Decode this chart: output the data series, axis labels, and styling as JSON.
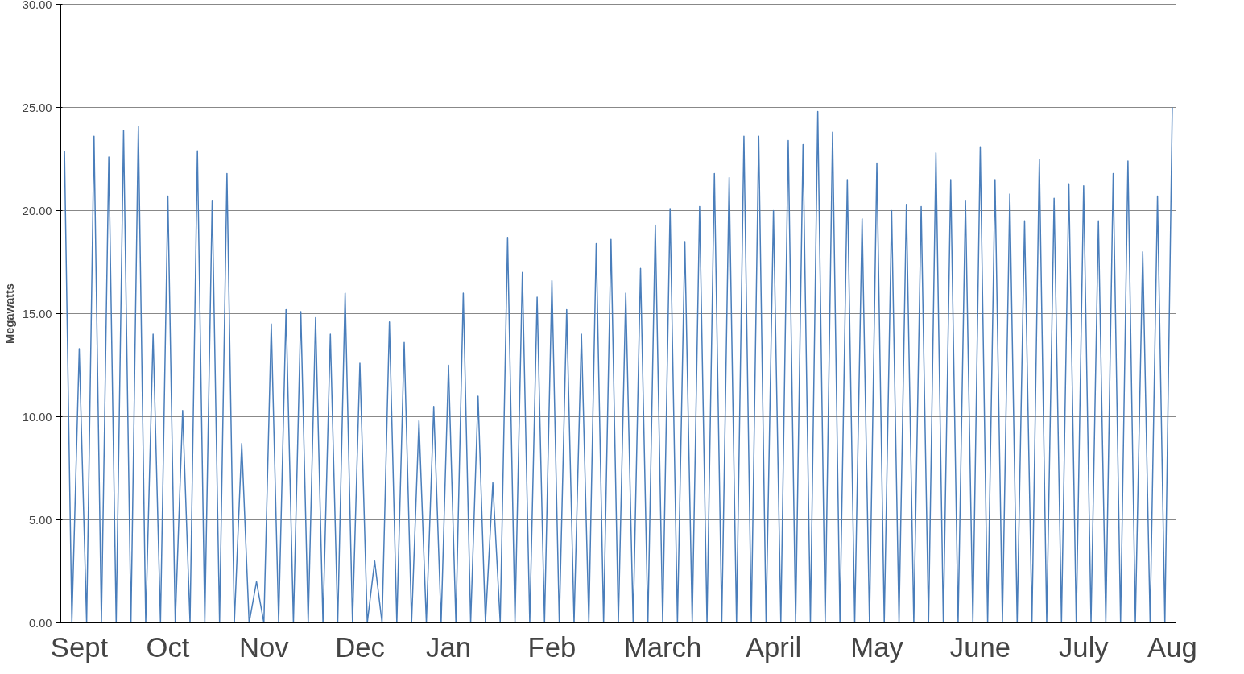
{
  "chart_data": {
    "type": "line",
    "ylabel": "Megawatts",
    "categories": [
      null,
      null,
      "Sept",
      null,
      null,
      null,
      null,
      null,
      null,
      null,
      null,
      null,
      null,
      null,
      "Oct",
      null,
      null,
      null,
      null,
      null,
      null,
      null,
      null,
      null,
      null,
      null,
      null,
      "Nov",
      null,
      null,
      null,
      null,
      null,
      null,
      null,
      null,
      null,
      null,
      null,
      null,
      "Dec",
      null,
      null,
      null,
      null,
      null,
      null,
      null,
      null,
      null,
      null,
      null,
      "Jan",
      null,
      null,
      null,
      null,
      null,
      null,
      null,
      null,
      null,
      null,
      null,
      null,
      null,
      "Feb",
      null,
      null,
      null,
      null,
      null,
      null,
      null,
      null,
      null,
      null,
      null,
      null,
      null,
      null,
      "March",
      null,
      null,
      null,
      null,
      null,
      null,
      null,
      null,
      null,
      null,
      null,
      null,
      null,
      null,
      "April",
      null,
      null,
      null,
      null,
      null,
      null,
      null,
      null,
      null,
      null,
      null,
      null,
      null,
      "May",
      null,
      null,
      null,
      null,
      null,
      null,
      null,
      null,
      null,
      null,
      null,
      null,
      null,
      "June",
      null,
      null,
      null,
      null,
      null,
      null,
      null,
      null,
      null,
      null,
      null,
      null,
      null,
      "July",
      null,
      null,
      null,
      null,
      null,
      null,
      null,
      null,
      null,
      null,
      null,
      "Aug"
    ],
    "series": [
      {
        "color": "#4a7ebb",
        "values": [
          22.9,
          0,
          13.3,
          0,
          23.6,
          0,
          22.6,
          0,
          23.9,
          0,
          24.1,
          0,
          14,
          0,
          20.7,
          0,
          10.3,
          0,
          22.9,
          0,
          20.5,
          0,
          21.8,
          0,
          8.7,
          0,
          2,
          0,
          14.5,
          0,
          15.2,
          0,
          15.1,
          0,
          14.8,
          0,
          14,
          0,
          16,
          0,
          12.6,
          0,
          3,
          0,
          14.6,
          0,
          13.6,
          0,
          9.8,
          0,
          10.5,
          0,
          12.5,
          0,
          16,
          0,
          11,
          0,
          6.8,
          0,
          18.7,
          0,
          17,
          0,
          15.8,
          0,
          16.6,
          0,
          15.2,
          0,
          14,
          0,
          18.4,
          0,
          18.6,
          0,
          16,
          0,
          17.2,
          0,
          19.3,
          0,
          20.1,
          0,
          18.5,
          0,
          20.2,
          0,
          21.8,
          0,
          21.6,
          0,
          23.6,
          0,
          23.6,
          0,
          20,
          0,
          23.4,
          0,
          23.2,
          0,
          24.8,
          0,
          23.8,
          0,
          21.5,
          0,
          19.6,
          0,
          22.3,
          0,
          20,
          0,
          20.3,
          0,
          20.2,
          0,
          22.8,
          0,
          21.5,
          0,
          20.5,
          0,
          23.1,
          0,
          21.5,
          0,
          20.8,
          0,
          19.5,
          0,
          22.5,
          0,
          20.6,
          0,
          21.3,
          0,
          21.2,
          0,
          19.5,
          0,
          21.8,
          0,
          22.4,
          0,
          18,
          0,
          20.7,
          0,
          25
        ]
      }
    ],
    "ylim": [
      0,
      30
    ],
    "yticks": [
      {
        "value": 0,
        "label": "0.00"
      },
      {
        "value": 5,
        "label": "5.00"
      },
      {
        "value": 10,
        "label": "10.00"
      },
      {
        "value": 15,
        "label": "15.00"
      },
      {
        "value": 20,
        "label": "20.00"
      },
      {
        "value": 25,
        "label": "25.00"
      },
      {
        "value": 30,
        "label": "30.00"
      }
    ],
    "grid": "y",
    "marker": "none",
    "line_style": "solid"
  }
}
